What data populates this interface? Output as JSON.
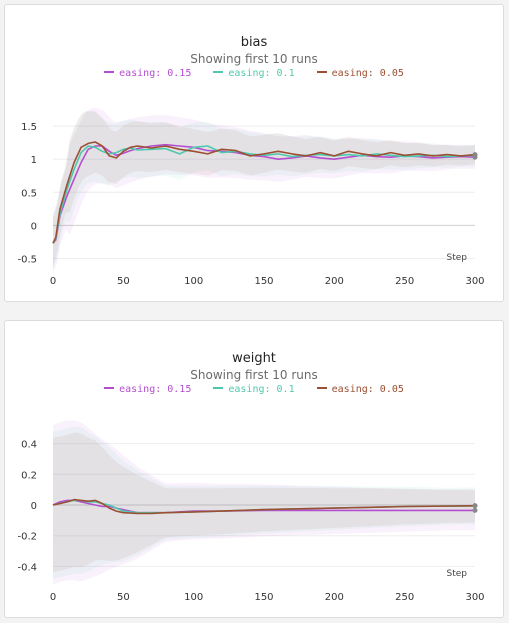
{
  "colors": {
    "s015": "#b34fcf",
    "s01": "#4fc9ad",
    "s005": "#9c4f32"
  },
  "chart_data": [
    {
      "type": "line",
      "title": "bias",
      "subtitle": "Showing first 10 runs",
      "xlabel": "Step",
      "xlim": [
        0,
        300
      ],
      "ylim": [
        -0.75,
        1.85
      ],
      "xticks": [
        0,
        50,
        100,
        150,
        200,
        250,
        300
      ],
      "yticks": [
        -0.5,
        0,
        0.5,
        1,
        1.5
      ],
      "ytick_labels": [
        "-0.5",
        "0",
        "0.5",
        "1",
        "1.5"
      ],
      "grid": true,
      "legend": "top",
      "series": [
        {
          "name": "easing: 0.15",
          "color": "#b34fcf",
          "x": [
            0,
            2,
            5,
            10,
            15,
            20,
            25,
            30,
            35,
            40,
            45,
            50,
            55,
            60,
            70,
            80,
            90,
            100,
            110,
            120,
            130,
            140,
            150,
            160,
            170,
            180,
            190,
            200,
            210,
            220,
            230,
            240,
            250,
            260,
            270,
            280,
            290,
            300
          ],
          "y": [
            -0.27,
            -0.22,
            0.15,
            0.45,
            0.7,
            0.95,
            1.15,
            1.2,
            1.2,
            1.12,
            1.06,
            1.09,
            1.13,
            1.16,
            1.2,
            1.22,
            1.2,
            1.18,
            1.13,
            1.12,
            1.1,
            1.06,
            1.04,
            1.0,
            1.02,
            1.05,
            1.02,
            1.0,
            1.03,
            1.06,
            1.04,
            1.03,
            1.05,
            1.04,
            1.02,
            1.03,
            1.04,
            1.03
          ]
        },
        {
          "name": "easing: 0.1",
          "color": "#4fc9ad",
          "x": [
            0,
            2,
            5,
            10,
            15,
            20,
            25,
            30,
            35,
            40,
            45,
            50,
            55,
            60,
            70,
            80,
            90,
            100,
            110,
            120,
            130,
            140,
            150,
            160,
            170,
            180,
            190,
            200,
            210,
            220,
            230,
            240,
            250,
            260,
            270,
            280,
            290,
            300
          ],
          "y": [
            -0.27,
            -0.2,
            0.18,
            0.55,
            0.85,
            1.1,
            1.2,
            1.18,
            1.12,
            1.08,
            1.1,
            1.15,
            1.17,
            1.14,
            1.15,
            1.16,
            1.08,
            1.18,
            1.2,
            1.1,
            1.12,
            1.08,
            1.06,
            1.08,
            1.04,
            1.06,
            1.07,
            1.05,
            1.07,
            1.05,
            1.08,
            1.06,
            1.04,
            1.05,
            1.06,
            1.04,
            1.05,
            1.06
          ]
        },
        {
          "name": "easing: 0.05",
          "color": "#9c4f32",
          "x": [
            0,
            2,
            5,
            10,
            15,
            20,
            25,
            30,
            35,
            40,
            45,
            50,
            55,
            60,
            70,
            80,
            90,
            100,
            110,
            120,
            130,
            140,
            150,
            160,
            170,
            180,
            190,
            200,
            210,
            220,
            230,
            240,
            250,
            260,
            270,
            280,
            290,
            300
          ],
          "y": [
            -0.27,
            -0.18,
            0.25,
            0.62,
            0.95,
            1.18,
            1.24,
            1.26,
            1.2,
            1.05,
            1.02,
            1.12,
            1.18,
            1.2,
            1.17,
            1.2,
            1.15,
            1.12,
            1.08,
            1.15,
            1.13,
            1.05,
            1.08,
            1.12,
            1.08,
            1.05,
            1.1,
            1.05,
            1.12,
            1.08,
            1.05,
            1.1,
            1.06,
            1.08,
            1.05,
            1.07,
            1.05,
            1.07
          ]
        }
      ]
    },
    {
      "type": "line",
      "title": "weight",
      "subtitle": "Showing first 10 runs",
      "xlabel": "Step",
      "xlim": [
        0,
        300
      ],
      "ylim": [
        -0.56,
        0.56
      ],
      "xticks": [
        0,
        50,
        100,
        150,
        200,
        250,
        300
      ],
      "yticks": [
        -0.4,
        -0.2,
        0,
        0.2,
        0.4
      ],
      "ytick_labels": [
        "-0.4",
        "-0.2",
        "0",
        "0.2",
        "0.4"
      ],
      "grid": true,
      "legend": "top",
      "series": [
        {
          "name": "easing: 0.15",
          "color": "#b34fcf",
          "x": [
            0,
            5,
            10,
            15,
            20,
            25,
            30,
            35,
            40,
            45,
            50,
            60,
            70,
            80,
            100,
            120,
            150,
            200,
            250,
            300
          ],
          "y": [
            0,
            0.02,
            0.03,
            0.03,
            0.02,
            0.01,
            0,
            -0.01,
            -0.01,
            -0.02,
            -0.03,
            -0.05,
            -0.05,
            -0.05,
            -0.04,
            -0.04,
            -0.035,
            -0.035,
            -0.035,
            -0.035
          ]
        },
        {
          "name": "easing: 0.1",
          "color": "#4fc9ad",
          "x": [
            0,
            5,
            10,
            15,
            20,
            25,
            30,
            35,
            40,
            45,
            50,
            60,
            70,
            80,
            100,
            120,
            150,
            200,
            250,
            300
          ],
          "y": [
            0,
            0.01,
            0.02,
            0.03,
            0.03,
            0.02,
            0.02,
            0.01,
            0,
            -0.02,
            -0.04,
            -0.05,
            -0.05,
            -0.05,
            -0.045,
            -0.04,
            -0.03,
            -0.02,
            -0.01,
            -0.005
          ]
        },
        {
          "name": "easing: 0.05",
          "color": "#9c4f32",
          "x": [
            0,
            5,
            10,
            15,
            20,
            25,
            30,
            35,
            40,
            45,
            50,
            60,
            70,
            80,
            100,
            120,
            150,
            200,
            250,
            300
          ],
          "y": [
            0,
            0.01,
            0.02,
            0.035,
            0.03,
            0.025,
            0.03,
            0.01,
            -0.02,
            -0.04,
            -0.05,
            -0.055,
            -0.055,
            -0.05,
            -0.045,
            -0.04,
            -0.03,
            -0.02,
            -0.01,
            -0.005
          ]
        }
      ]
    }
  ]
}
